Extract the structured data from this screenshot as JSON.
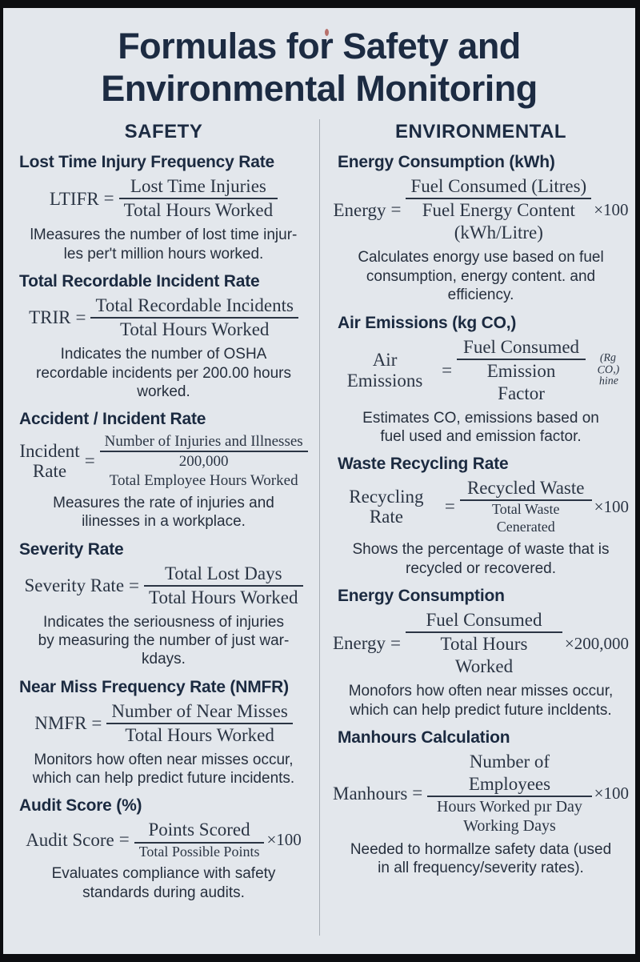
{
  "title": "Formulas for Safety and\nEnvironmental Monitoring",
  "colors": {
    "background": "#e3e7ec",
    "frame": "#0d0e11",
    "heading_text": "#1c2b42",
    "formula_text": "#2b3544",
    "divider": "#a7aeb6"
  },
  "safety": {
    "header": "SAFETY",
    "sections": [
      {
        "title": "Lost Time Injury Frequency Rate",
        "formula": {
          "lhs": "LTIFR",
          "eq": "=",
          "num": "Lost Time Injuries",
          "den": "Total Hours Worked"
        },
        "desc": "lMeasures the number of lost time injur-\nles per't million hours worked."
      },
      {
        "title": "Total Recordable Incident Rate",
        "formula": {
          "lhs": "TRIR",
          "eq": "=",
          "num": "Total Recordable Incidents",
          "den": "Total Hours Worked"
        },
        "desc": "Indicates the number of OSHA\nrecordable incidents per 200.00 hours\nworked."
      },
      {
        "title": "Accident / Incident Rate",
        "formula": {
          "lhs": "Incident\nRate",
          "eq": "=",
          "num": "Number of Injuries and Illnesses",
          "den": "200,000\nTotal Employee Hours Worked"
        },
        "desc": "Measures the rate of injuries and\nilinesses in a workplace."
      },
      {
        "title": "Severity Rate",
        "formula": {
          "lhs": "Severity Rate",
          "eq": "=",
          "num": "Total Lost Days",
          "den": "Total Hours Worked"
        },
        "desc": "Indicates the seriousness of injuries\nby measuring the number of just war-\nkdays."
      },
      {
        "title": "Near Miss Frequency Rate (NMFR)",
        "formula": {
          "lhs": "NMFR",
          "eq": "=",
          "num": "Number of Near Misses",
          "den": "Total Hours Worked"
        },
        "desc": "Monitors how often near misses occur,\nwhich can help predict future incidents."
      },
      {
        "title": "Audit Score (%)",
        "formula": {
          "lhs": "Audit Score",
          "eq": "=",
          "num": "Points Scored",
          "den": "Total Possible Points",
          "sfx": "×100"
        },
        "desc": "Evaluates compliance with safety\nstandards during audits."
      }
    ]
  },
  "environmental": {
    "header": "ENVIRONMENTAL",
    "sections": [
      {
        "title": "Energy Consumption (kWh)",
        "formula": {
          "lhs": "Energy",
          "eq": "=",
          "num": "Fuel Consumed (Litres)",
          "den": "Fuel Energy Content\n(kWh/Litre)",
          "sfx": "×100"
        },
        "desc": "Calculates enorgy use based on fuel\nconsumption, energy content. and\nefficiency."
      },
      {
        "title": "Air Emissions (kg CO,)",
        "formula": {
          "lhs": "Air Emissions",
          "eq": "=",
          "num": "Fuel Consumed",
          "den": "Emission Factor",
          "ann": "(Rg CO,)\nhine"
        },
        "desc": "Estimates CO, emissions based on\nfuel used and emission factor."
      },
      {
        "title": "Waste Recycling Rate",
        "formula": {
          "lhs": "Recycling Rate",
          "eq": "=",
          "num": "Recycled Waste",
          "den": "Total Waste Cenerated",
          "sfx": "×100"
        },
        "desc": "Shows the percentage of waste that is\nrecycled or recovered."
      },
      {
        "title": "Energy Consumption",
        "formula": {
          "lhs": "Energy",
          "eq": "=",
          "num": "Fuel Consumed",
          "den": "Total Hours Worked",
          "sfx": "×200,000"
        },
        "desc": "Monofors how often near misses occur,\nwhich can help predict future incldents."
      },
      {
        "title": "Manhours Calculation",
        "formula": {
          "lhs": "Manhours",
          "eq": "=",
          "num": "Number of Employees",
          "den": "Hours Worked pır Day\nWorking Days",
          "sfx": "×100"
        },
        "desc": "Needed to hormallze safety data (used\nin all frequency/severity rates)."
      }
    ]
  }
}
